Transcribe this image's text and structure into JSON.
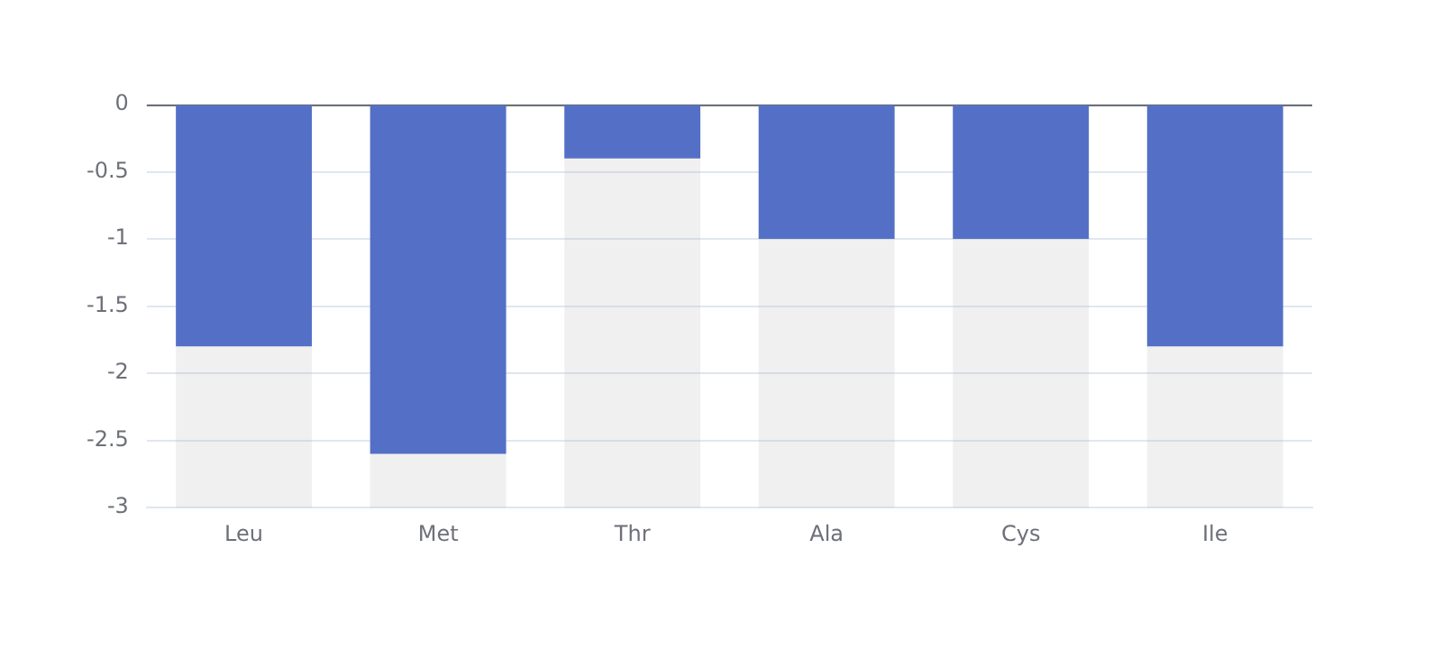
{
  "chart_data": {
    "type": "bar",
    "categories": [
      "Leu",
      "Met",
      "Thr",
      "Ala",
      "Cys",
      "Ile"
    ],
    "values": [
      -1.8,
      -2.6,
      -0.4,
      -1,
      -1,
      -1.8
    ],
    "color": "#5470c6",
    "ylim": [
      -3,
      0
    ],
    "yticks": [
      -3,
      -2.5,
      -2,
      -1.5,
      -1,
      -0.5,
      0
    ],
    "grid": "y"
  }
}
